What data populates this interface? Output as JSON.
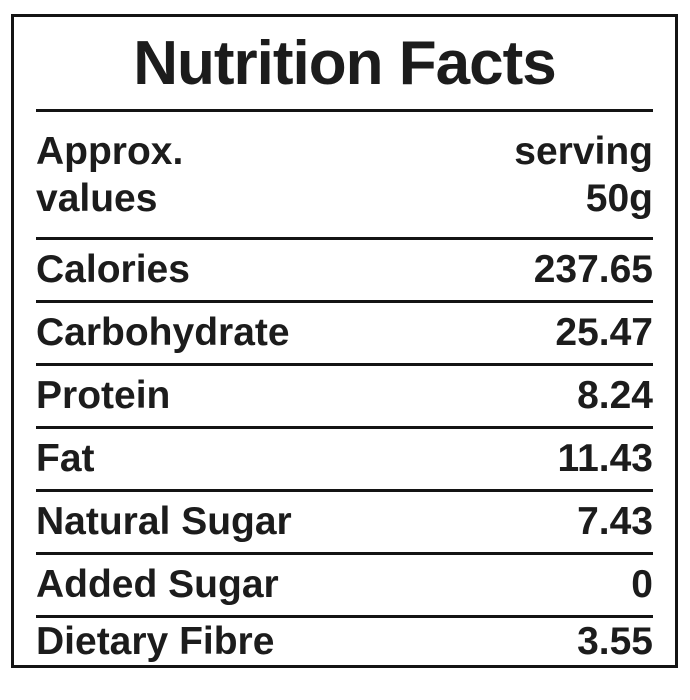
{
  "label": {
    "title": "Nutrition Facts",
    "serving_header": {
      "left_line1": "Approx.",
      "left_line2": "values",
      "right_line1": "serving",
      "right_line2": "50g"
    },
    "rows": [
      {
        "name": "Calories",
        "value": "237.65"
      },
      {
        "name": "Carbohydrate",
        "value": "25.47"
      },
      {
        "name": "Protein",
        "value": "8.24"
      },
      {
        "name": "Fat",
        "value": "11.43"
      },
      {
        "name": "Natural Sugar",
        "value": "7.43"
      },
      {
        "name": "Added Sugar",
        "value": "0"
      },
      {
        "name": "Dietary Fibre",
        "value": "3.55"
      }
    ],
    "colors": {
      "text": "#1c1c1c",
      "line": "#141414",
      "background": "#ffffff"
    }
  }
}
